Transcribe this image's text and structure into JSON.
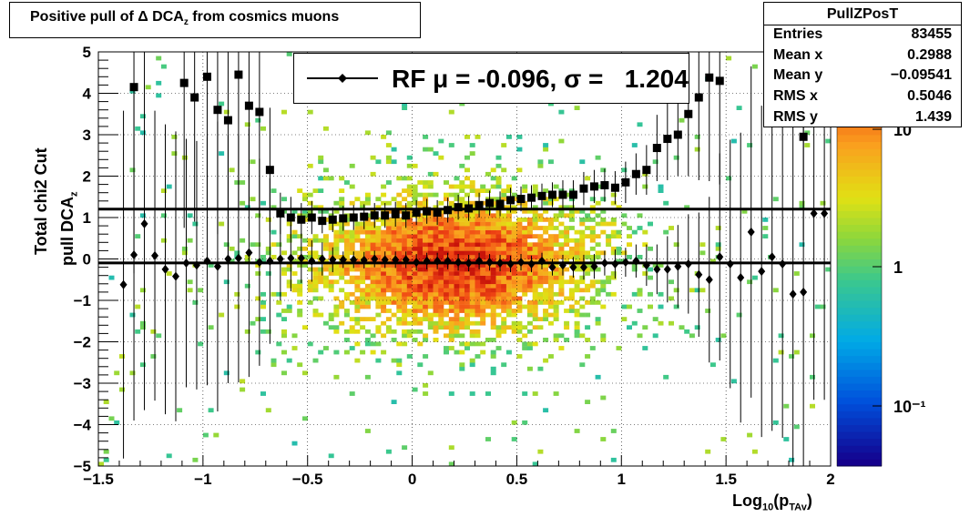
{
  "title": "Positive pull of Δ DCA_z from cosmics muons",
  "title_main": "Positive pull of Δ DCA",
  "title_sub": "z",
  "title_tail": " from cosmics muons",
  "stats": {
    "name": "PullZPosT",
    "rows": [
      {
        "key": "Entries",
        "value": "83455"
      },
      {
        "key": "Mean x",
        "value": "0.2988"
      },
      {
        "key": "Mean y",
        "value": "−0.09541"
      },
      {
        "key": "RMS x",
        "value": "0.5046"
      },
      {
        "key": "RMS y",
        "value": "1.439"
      }
    ]
  },
  "legend": {
    "text": "RF μ = -0.096, σ =   1.204"
  },
  "xaxis": {
    "label_main": "Log",
    "label_sub1": "10",
    "label_mid": "(p",
    "label_sub2": "TAv",
    "label_end": ")"
  },
  "yaxis": {
    "line1": "Total chi2 Cut",
    "line2_main": "pull DCA",
    "line2_sub": "z"
  },
  "chart_data": {
    "type": "heatmap",
    "xlim": [
      -1.5,
      2
    ],
    "ylim": [
      -5,
      5
    ],
    "x_ticks": [
      "−1.5",
      "−1",
      "−0.5",
      "0",
      "0.5",
      "1",
      "1.5",
      "2"
    ],
    "y_ticks": [
      "−5",
      "−4",
      "−3",
      "−2",
      "−1",
      "0",
      "1",
      "2",
      "3",
      "4",
      "5"
    ],
    "grid": true,
    "z_scale": "log",
    "z_ticks": [
      "10",
      "1",
      "10⁻¹"
    ],
    "series": [
      {
        "name": "sigma",
        "marker": "square",
        "x": [
          -1.33,
          -1.09,
          -1.04,
          -0.98,
          -0.93,
          -0.88,
          -0.83,
          -0.78,
          -0.73,
          -0.68,
          -0.63,
          -0.58,
          -0.53,
          -0.48,
          -0.43,
          -0.38,
          -0.33,
          -0.28,
          -0.23,
          -0.18,
          -0.13,
          -0.08,
          -0.03,
          0.02,
          0.07,
          0.12,
          0.17,
          0.22,
          0.27,
          0.32,
          0.37,
          0.42,
          0.47,
          0.52,
          0.57,
          0.62,
          0.67,
          0.72,
          0.77,
          0.82,
          0.87,
          0.92,
          0.97,
          1.02,
          1.07,
          1.12,
          1.17,
          1.22,
          1.27,
          1.32,
          1.37,
          1.42,
          1.47,
          1.87
        ],
        "y": [
          4.15,
          4.25,
          3.9,
          4.4,
          3.6,
          3.35,
          4.45,
          3.7,
          3.55,
          2.15,
          1.1,
          1.0,
          0.95,
          1.0,
          0.92,
          0.95,
          0.98,
          1.0,
          1.02,
          1.05,
          1.05,
          1.08,
          1.05,
          1.12,
          1.15,
          1.12,
          1.18,
          1.25,
          1.22,
          1.3,
          1.35,
          1.33,
          1.42,
          1.45,
          1.48,
          1.52,
          1.55,
          1.55,
          1.55,
          1.7,
          1.75,
          1.78,
          1.72,
          1.85,
          2.05,
          2.15,
          2.68,
          2.9,
          3.0,
          3.5,
          3.9,
          4.38,
          4.3,
          2.95
        ],
        "err": [
          4.5,
          3.5,
          3.0,
          3.2,
          3.0,
          3.5,
          3.2,
          2.5,
          2.5,
          1.5,
          0.5,
          0.5,
          0.4,
          0.4,
          0.3,
          0.3,
          0.3,
          0.3,
          0.3,
          0.3,
          0.3,
          0.3,
          0.3,
          0.3,
          0.3,
          0.3,
          0.3,
          0.3,
          0.3,
          0.3,
          0.3,
          0.3,
          0.3,
          0.3,
          0.3,
          0.3,
          0.3,
          0.35,
          0.35,
          0.4,
          0.4,
          0.4,
          0.4,
          0.5,
          0.5,
          0.6,
          0.8,
          1.0,
          1.0,
          1.5,
          2.0,
          2.5,
          2.5,
          2.5
        ]
      },
      {
        "name": "mean",
        "marker": "diamond",
        "x": [
          -1.38,
          -1.33,
          -1.28,
          -1.23,
          -1.18,
          -1.13,
          -1.08,
          -1.03,
          -0.98,
          -0.93,
          -0.88,
          -0.83,
          -0.78,
          -0.73,
          -0.68,
          -0.63,
          -0.58,
          -0.53,
          -0.48,
          -0.43,
          -0.38,
          -0.33,
          -0.28,
          -0.23,
          -0.18,
          -0.13,
          -0.08,
          -0.03,
          0.02,
          0.07,
          0.12,
          0.17,
          0.22,
          0.27,
          0.32,
          0.37,
          0.42,
          0.47,
          0.52,
          0.57,
          0.62,
          0.67,
          0.72,
          0.77,
          0.82,
          0.87,
          0.92,
          0.97,
          1.02,
          1.07,
          1.12,
          1.17,
          1.22,
          1.27,
          1.32,
          1.37,
          1.42,
          1.47,
          1.52,
          1.57,
          1.62,
          1.67,
          1.72,
          1.77,
          1.82,
          1.87,
          1.92,
          1.97
        ],
        "y": [
          -0.62,
          0.1,
          0.85,
          0.08,
          -0.25,
          -0.42,
          -0.1,
          -0.15,
          -0.05,
          -0.18,
          0.0,
          0.02,
          0.15,
          -0.08,
          -0.05,
          0.0,
          0.02,
          0.02,
          -0.05,
          0.0,
          -0.02,
          -0.02,
          -0.02,
          -0.03,
          0.0,
          -0.02,
          -0.02,
          -0.02,
          -0.08,
          -0.05,
          -0.05,
          -0.05,
          -0.08,
          -0.1,
          -0.05,
          -0.08,
          -0.1,
          -0.12,
          -0.08,
          -0.12,
          -0.05,
          -0.2,
          -0.15,
          -0.2,
          -0.2,
          -0.18,
          -0.1,
          -0.12,
          -0.08,
          -0.05,
          -0.15,
          -0.25,
          -0.25,
          -0.18,
          -0.12,
          -0.38,
          -0.5,
          0.05,
          -0.12,
          -0.45,
          0.65,
          -0.3,
          0.05,
          -0.12,
          -0.85,
          -0.8,
          1.1,
          1.1
        ],
        "err": [
          4.2,
          4.0,
          4.5,
          3.5,
          3.5,
          3.5,
          3.0,
          3.0,
          3.0,
          3.5,
          3.0,
          3.0,
          3.0,
          2.5,
          2.0,
          1.0,
          0.8,
          0.6,
          0.5,
          0.4,
          0.3,
          0.2,
          0.2,
          0.2,
          0.2,
          0.2,
          0.2,
          0.2,
          0.2,
          0.2,
          0.2,
          0.2,
          0.2,
          0.2,
          0.2,
          0.2,
          0.2,
          0.2,
          0.2,
          0.2,
          0.2,
          0.2,
          0.25,
          0.25,
          0.3,
          0.3,
          0.3,
          0.35,
          0.35,
          0.4,
          0.5,
          0.6,
          0.8,
          1.0,
          1.2,
          1.5,
          2.0,
          2.5,
          3.0,
          3.5,
          4.0,
          4.0,
          4.2,
          4.2,
          4.2,
          4.2,
          4.5,
          4.5
        ]
      }
    ],
    "fit_lines": [
      {
        "name": "sigma_fit",
        "y": 1.204
      },
      {
        "name": "mean_fit",
        "y": -0.096
      }
    ]
  }
}
